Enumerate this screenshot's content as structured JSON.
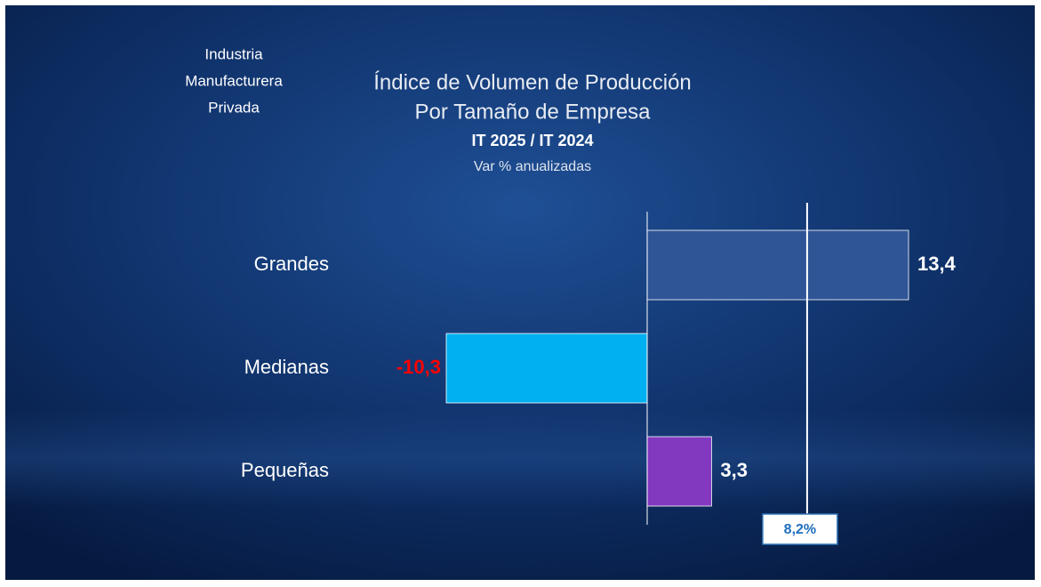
{
  "chart_data": {
    "type": "bar",
    "orientation": "horizontal",
    "annotation_lines": [
      "Industria",
      "Manufacturera",
      "Privada"
    ],
    "title_lines": [
      "Índice de Volumen de Producción",
      "Por Tamaño de Empresa"
    ],
    "subtitle": "IT 2025 / IT 2024",
    "note": "Var % anualizadas",
    "categories": [
      "Grandes",
      "Medianas",
      "Pequeñas"
    ],
    "values": [
      13.4,
      -10.3,
      3.3
    ],
    "value_labels": [
      "13,4",
      "-10,3",
      "3,3"
    ],
    "colors": [
      "#2f5597",
      "#00b0f0",
      "#8338c0"
    ],
    "label_colors": [
      "#ffffff",
      "#ff0000",
      "#ffffff"
    ],
    "reference_line": {
      "value": 8.2,
      "label": "8,2%"
    }
  }
}
